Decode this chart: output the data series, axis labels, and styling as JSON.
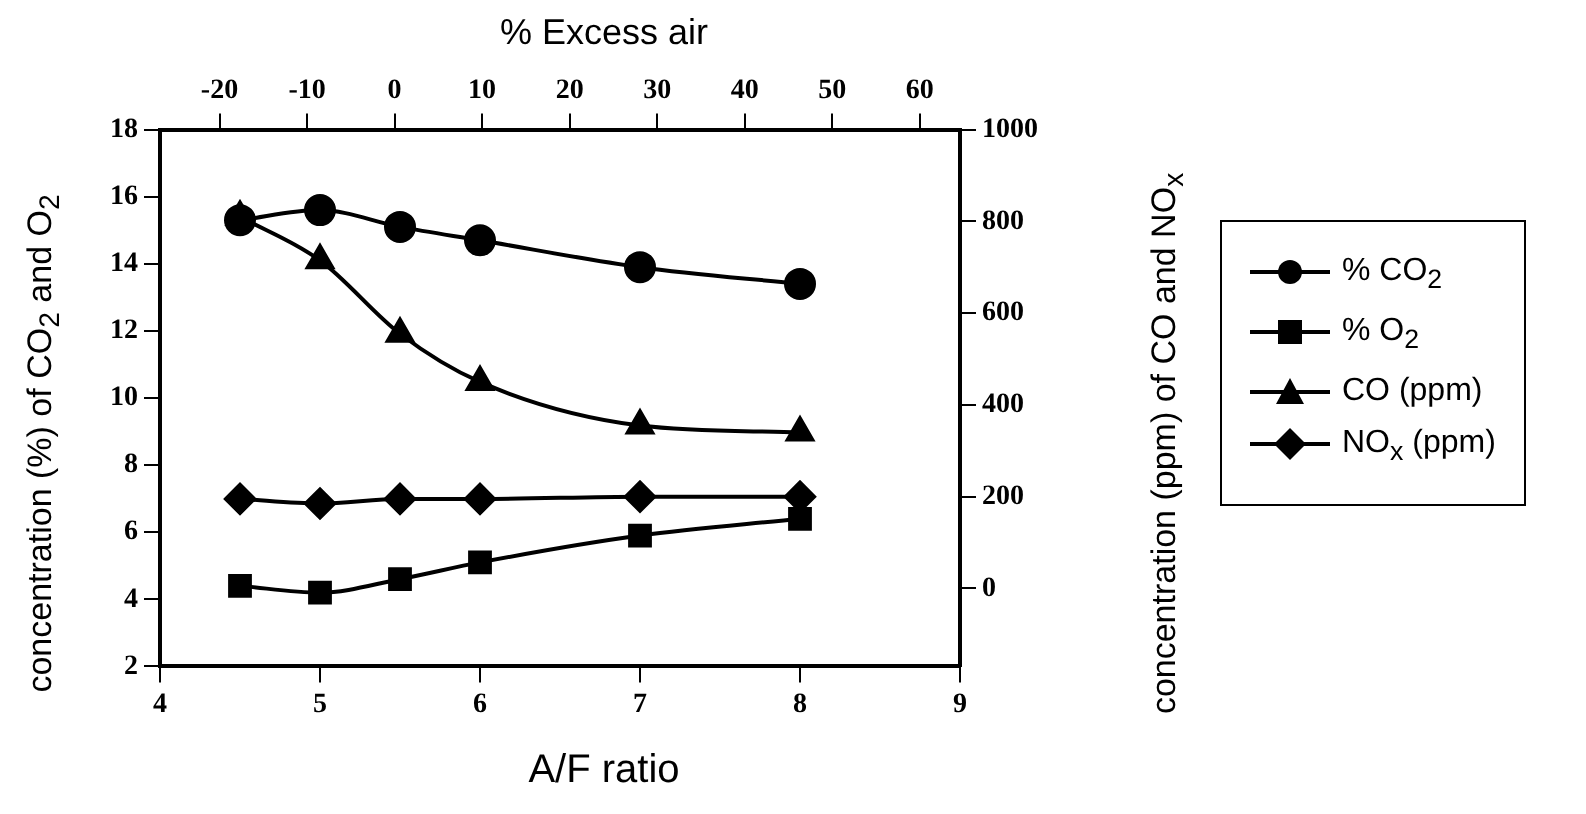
{
  "chart_data": {
    "type": "line",
    "xlabel": "A/F ratio",
    "x2label": "% Excess air",
    "ylabel": "concentration (%) of CO$_{2}$ and O$_{2}$",
    "y2label": "concentration (ppm) of CO and NO$_{x}$",
    "x": [
      4.5,
      5,
      5.5,
      6,
      7,
      8
    ],
    "xlim": [
      4,
      9
    ],
    "xticks": [
      4,
      5,
      6,
      7,
      8,
      9
    ],
    "x2lim": [
      -26.8,
      64.6
    ],
    "x2ticks": [
      -20,
      -10,
      0,
      10,
      20,
      30,
      40,
      50,
      60
    ],
    "ylim": [
      2,
      18
    ],
    "yticks": [
      2,
      4,
      6,
      8,
      10,
      12,
      14,
      16,
      18
    ],
    "y2lim": [
      -170,
      1000
    ],
    "y2ticks": [
      0,
      200,
      400,
      600,
      800,
      1000
    ],
    "series": [
      {
        "name": "% CO$_{2}$",
        "color": "#000000",
        "marker": "circle",
        "values": [
          15.3,
          15.6,
          15.1,
          14.7,
          13.9,
          13.4
        ]
      },
      {
        "name": "% O$_{2}$",
        "color": "#000000",
        "marker": "square",
        "values": [
          4.4,
          4.2,
          4.6,
          5.1,
          5.9,
          6.4
        ]
      },
      {
        "name": "CO (ppm)",
        "color": "#000000",
        "marker": "triangle",
        "axis": "y2",
        "values": [
          810,
          715,
          555,
          450,
          355,
          340
        ]
      },
      {
        "name": "NO$_{x}$ (ppm)",
        "color": "#000000",
        "marker": "diamond",
        "axis": "y2",
        "values": [
          195,
          185,
          195,
          195,
          200,
          200
        ]
      }
    ],
    "grid": false,
    "legend": "right",
    "line_style": "solid"
  }
}
